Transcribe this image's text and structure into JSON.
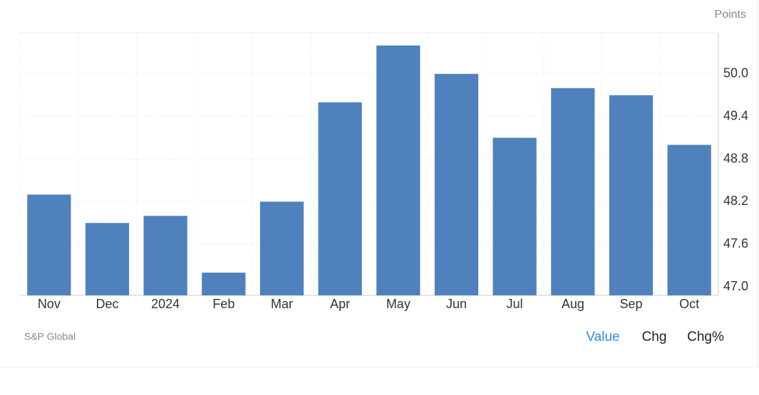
{
  "chart_data": {
    "type": "bar",
    "unit_label": "Points",
    "source": "S&P Global",
    "categories": [
      "Nov",
      "Dec",
      "2024",
      "Feb",
      "Mar",
      "Apr",
      "May",
      "Jun",
      "Jul",
      "Aug",
      "Sep",
      "Oct"
    ],
    "values": [
      48.3,
      47.9,
      48.0,
      47.2,
      48.2,
      49.6,
      50.4,
      50.0,
      49.1,
      49.8,
      49.7,
      49.0
    ],
    "color": "#4f81bd",
    "ylim": [
      46.88,
      50.58
    ],
    "yticks": [
      {
        "value": 47.0,
        "label": "47.0"
      },
      47.6,
      48.2,
      48.8,
      49.4,
      {
        "value": 50.0,
        "label": "50.0"
      }
    ],
    "grid": true
  },
  "controls": [
    "Value",
    "Chg",
    "Chg%"
  ]
}
